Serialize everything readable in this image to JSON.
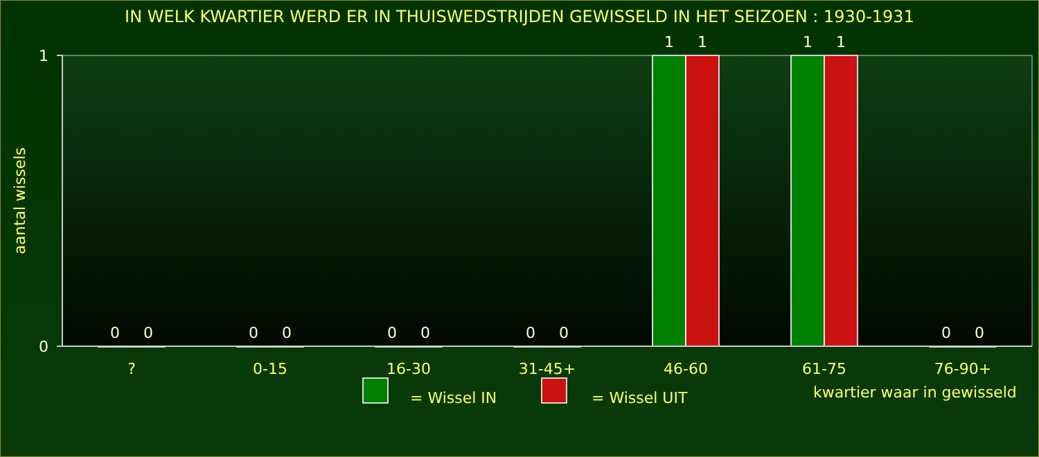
{
  "chart_data": {
    "type": "bar",
    "title": "IN WELK KWARTIER WERD ER IN THUISWEDSTRIJDEN GEWISSELD IN HET SEIZOEN : 1930-1931",
    "xlabel": "kwartier waar in gewisseld",
    "ylabel": "aantal wissels",
    "categories": [
      "?",
      "0-15",
      "16-30",
      "31-45+",
      "46-60",
      "61-75",
      "76-90+"
    ],
    "series": [
      {
        "name": "= Wissel IN",
        "color": "#008000",
        "values": [
          0,
          0,
          0,
          0,
          1,
          1,
          0
        ]
      },
      {
        "name": "= Wissel UIT",
        "color": "#cc1111",
        "values": [
          0,
          0,
          0,
          0,
          1,
          1,
          0
        ]
      }
    ],
    "ylim": [
      0,
      1
    ],
    "yticks": [
      0,
      1
    ],
    "grid": false,
    "legend": "bottom",
    "data_labels": true
  }
}
